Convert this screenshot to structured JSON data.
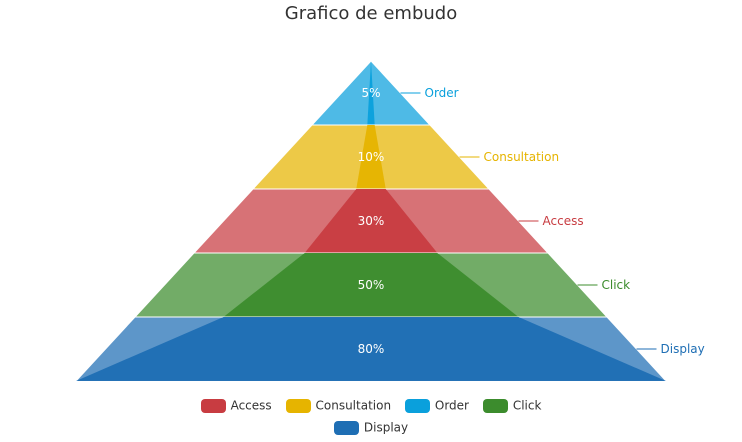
{
  "title": "Grafico de embudo",
  "chart_data": {
    "type": "funnel",
    "title": "Grafico de embudo",
    "stages": [
      {
        "name": "Order",
        "value": 5,
        "label": "5%",
        "color": "#0aa0dc"
      },
      {
        "name": "Consultation",
        "value": 10,
        "label": "10%",
        "color": "#e6b400"
      },
      {
        "name": "Access",
        "value": 30,
        "label": "30%",
        "color": "#c83c41"
      },
      {
        "name": "Click",
        "value": 50,
        "label": "50%",
        "color": "#3c8c2d"
      },
      {
        "name": "Display",
        "value": 80,
        "label": "80%",
        "color": "#1e6eb4"
      }
    ],
    "legend": {
      "position": "bottom",
      "rows": [
        [
          {
            "name": "Access",
            "color": "#c83c41"
          },
          {
            "name": "Consultation",
            "color": "#e6b400"
          },
          {
            "name": "Order",
            "color": "#0aa0dc"
          },
          {
            "name": "Click",
            "color": "#3c8c2d"
          }
        ],
        [
          {
            "name": "Display",
            "color": "#1e6eb4"
          }
        ]
      ]
    }
  }
}
